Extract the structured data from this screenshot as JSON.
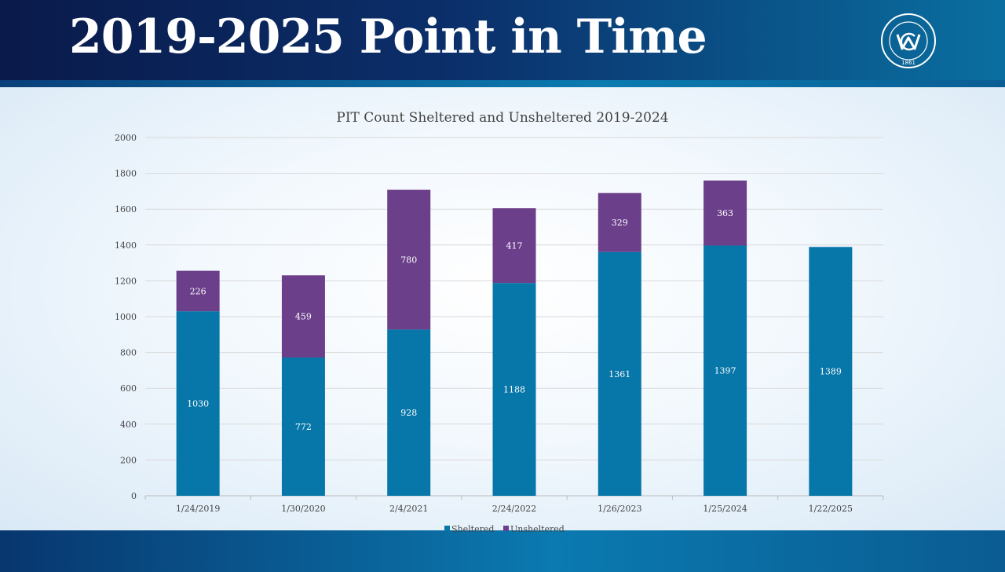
{
  "slide": {
    "title": "2019-2025 Point in Time",
    "seal_icon": "washoe-county-seal-icon",
    "seal_text_top": "WASHOE COUNTY NEVADA",
    "seal_year": "1861"
  },
  "colors": {
    "sheltered": "#0776a8",
    "unsheltered": "#6b3f8a",
    "header_dark": "#0a1a4a",
    "header_light": "#0a6fa0"
  },
  "chart_data": {
    "type": "bar",
    "stacked": true,
    "title": "PIT Count Sheltered and Unsheltered 2019-2024",
    "xlabel": "",
    "ylabel": "",
    "categories": [
      "1/24/2019",
      "1/30/2020",
      "2/4/2021",
      "2/24/2022",
      "1/26/2023",
      "1/25/2024",
      "1/22/2025"
    ],
    "series": [
      {
        "name": "Sheltered",
        "values": [
          1030,
          772,
          928,
          1188,
          1361,
          1397,
          1389
        ]
      },
      {
        "name": "Unsheltered",
        "values": [
          226,
          459,
          780,
          417,
          329,
          363,
          null
        ]
      }
    ],
    "ylim": [
      0,
      2000
    ],
    "yticks": [
      0,
      200,
      400,
      600,
      800,
      1000,
      1200,
      1400,
      1600,
      1800,
      2000
    ],
    "grid": true,
    "legend": "bottom"
  }
}
